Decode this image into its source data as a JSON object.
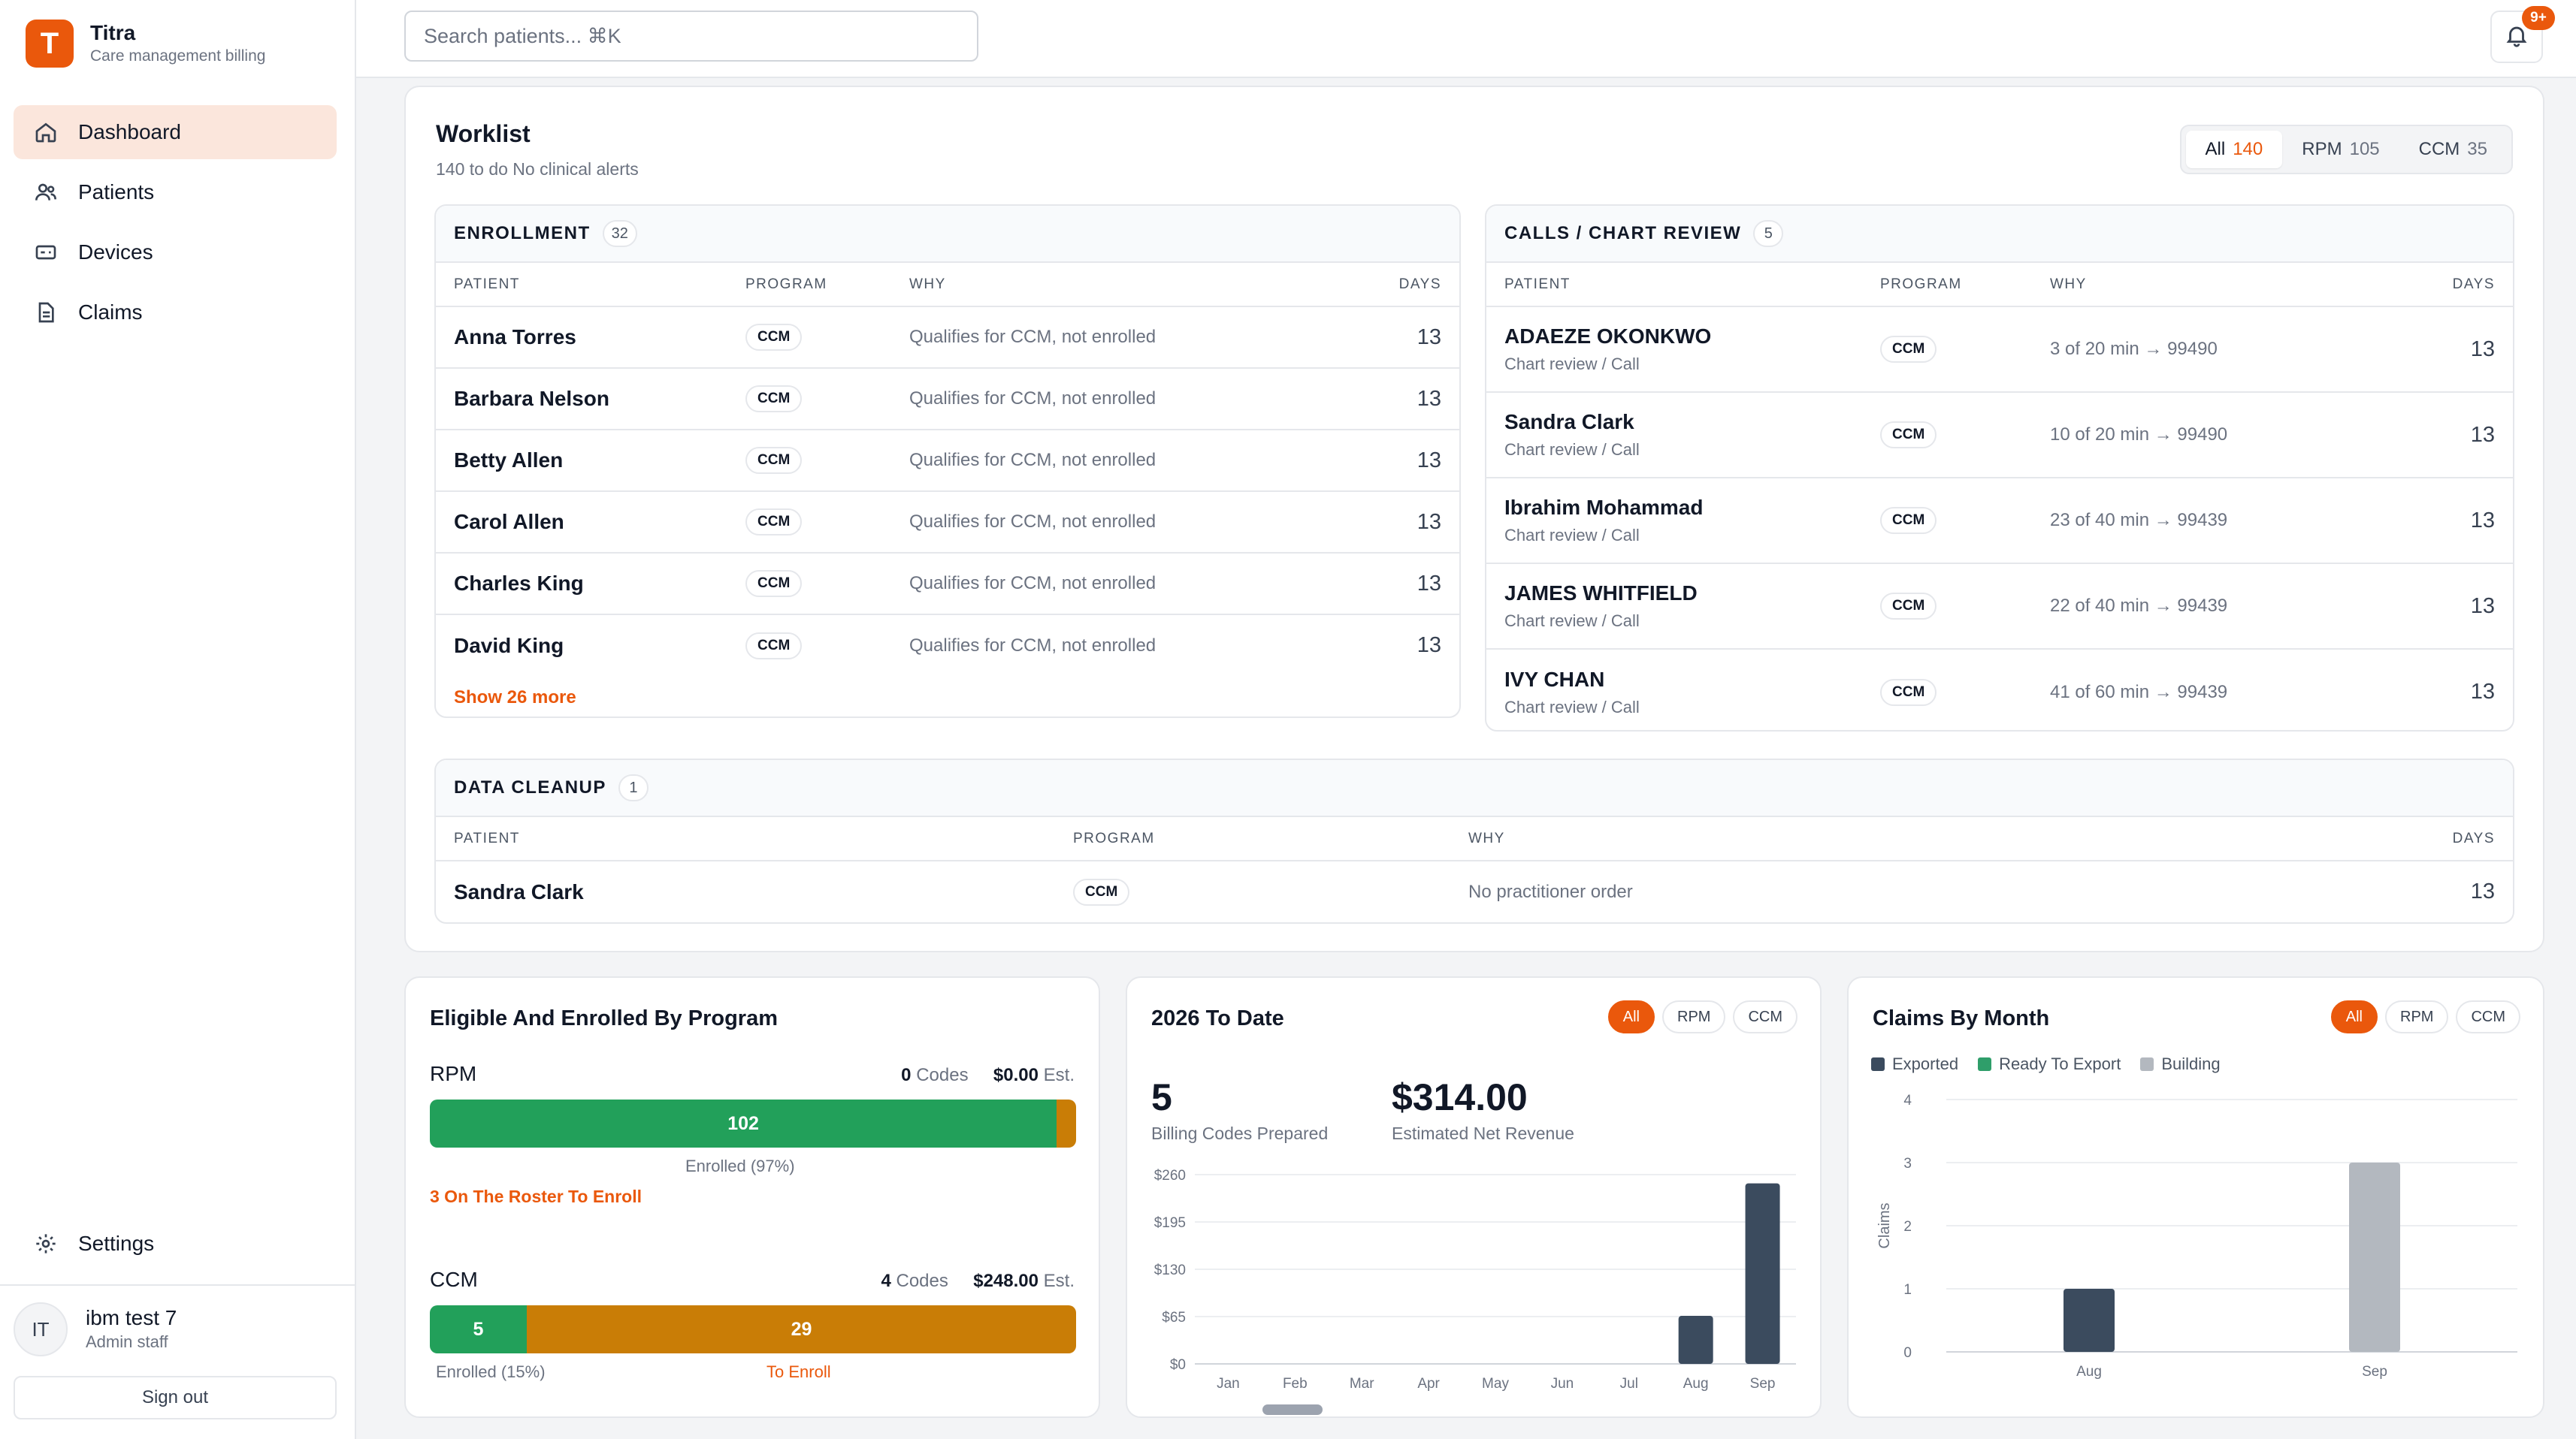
{
  "brand": {
    "logo_letter": "T",
    "name": "Titra",
    "subtitle": "Care management billing",
    "accent": "#ea580c"
  },
  "nav": [
    {
      "label": "Dashboard",
      "icon": "home-icon",
      "active": true
    },
    {
      "label": "Patients",
      "icon": "users-icon"
    },
    {
      "label": "Devices",
      "icon": "device-icon"
    },
    {
      "label": "Claims",
      "icon": "document-icon"
    }
  ],
  "settings": {
    "label": "Settings",
    "icon": "gear-icon"
  },
  "user": {
    "initials": "IT",
    "name": "ibm test 7",
    "role": "Admin staff",
    "signout": "Sign out"
  },
  "search": {
    "placeholder": "Search patients...  ⌘K"
  },
  "notifications": {
    "badge": "9+"
  },
  "worklist": {
    "title": "Worklist",
    "subtitle": "140 to do   No clinical alerts",
    "filters": [
      {
        "label": "All",
        "count": "140",
        "active": true
      },
      {
        "label": "RPM",
        "count": "105"
      },
      {
        "label": "CCM",
        "count": "35"
      }
    ],
    "enrollment": {
      "title": "ENROLLMENT",
      "count": "32",
      "columns": [
        "PATIENT",
        "PROGRAM",
        "WHY",
        "DAYS"
      ],
      "rows": [
        {
          "patient": "Anna Torres",
          "program": "CCM",
          "why": "Qualifies for CCM, not enrolled",
          "days": "13"
        },
        {
          "patient": "Barbara Nelson",
          "program": "CCM",
          "why": "Qualifies for CCM, not enrolled",
          "days": "13"
        },
        {
          "patient": "Betty Allen",
          "program": "CCM",
          "why": "Qualifies for CCM, not enrolled",
          "days": "13"
        },
        {
          "patient": "Carol Allen",
          "program": "CCM",
          "why": "Qualifies for CCM, not enrolled",
          "days": "13"
        },
        {
          "patient": "Charles King",
          "program": "CCM",
          "why": "Qualifies for CCM, not enrolled",
          "days": "13"
        },
        {
          "patient": "David King",
          "program": "CCM",
          "why": "Qualifies for CCM, not enrolled",
          "days": "13"
        }
      ],
      "show_more": "Show 26 more"
    },
    "calls": {
      "title": "CALLS / CHART REVIEW",
      "count": "5",
      "columns": [
        "PATIENT",
        "PROGRAM",
        "WHY",
        "DAYS"
      ],
      "rows": [
        {
          "patient": "ADAEZE OKONKWO",
          "sub": "Chart review / Call",
          "program": "CCM",
          "why": "3 of 20 min → 99490",
          "days": "13"
        },
        {
          "patient": "Sandra Clark",
          "sub": "Chart review / Call",
          "program": "CCM",
          "why": "10 of 20 min → 99490",
          "days": "13"
        },
        {
          "patient": "Ibrahim Mohammad",
          "sub": "Chart review / Call",
          "program": "CCM",
          "why": "23 of 40 min → 99439",
          "days": "13"
        },
        {
          "patient": "JAMES WHITFIELD",
          "sub": "Chart review / Call",
          "program": "CCM",
          "why": "22 of 40 min → 99439",
          "days": "13"
        },
        {
          "patient": "IVY CHAN",
          "sub": "Chart review / Call",
          "program": "CCM",
          "why": "41 of 60 min → 99439",
          "days": "13"
        }
      ]
    },
    "cleanup": {
      "title": "DATA CLEANUP",
      "count": "1",
      "columns": [
        "PATIENT",
        "PROGRAM",
        "WHY",
        "DAYS"
      ],
      "rows": [
        {
          "patient": "Sandra Clark",
          "program": "CCM",
          "why": "No practitioner order",
          "days": "13"
        }
      ]
    }
  },
  "eligible": {
    "title": "Eligible And Enrolled By Program",
    "rpm": {
      "label": "RPM",
      "codes_num": "0",
      "codes_label": "Codes",
      "est_num": "$0.00",
      "est_label": "Est.",
      "enrolled_value": "102",
      "enrolled_fraction": 0.97,
      "note": "Enrolled (97%)",
      "link": "3 On The Roster To Enroll"
    },
    "ccm": {
      "label": "CCM",
      "codes_num": "4",
      "codes_label": "Codes",
      "est_num": "$248.00",
      "est_label": "Est.",
      "enrolled_value": "5",
      "to_enroll_value": "29",
      "enrolled_fraction": 0.15,
      "note": "Enrolled (15%)",
      "to_enroll_label": "To Enroll"
    },
    "colors": {
      "enrolled": "#22a05a",
      "to_enroll": "#c97d06"
    }
  },
  "to_date": {
    "title": "2026 To Date",
    "filters": [
      {
        "label": "All",
        "active": true
      },
      {
        "label": "RPM"
      },
      {
        "label": "CCM"
      }
    ],
    "codes_value": "5",
    "codes_caption": "Billing Codes Prepared",
    "revenue_value": "$314.00",
    "revenue_caption": "Estimated Net Revenue"
  },
  "claims": {
    "title": "Claims By Month",
    "filters": [
      {
        "label": "All",
        "active": true
      },
      {
        "label": "RPM"
      },
      {
        "label": "CCM"
      }
    ]
  },
  "chart_data": [
    {
      "type": "bar",
      "title": "",
      "categories": [
        "Jan",
        "Feb",
        "Mar",
        "Apr",
        "May",
        "Jun",
        "Jul",
        "Aug",
        "Sep"
      ],
      "values": [
        0,
        0,
        0,
        0,
        0,
        0,
        0,
        66,
        248
      ],
      "y_ticks": [
        "$0",
        "$65",
        "$130",
        "$195",
        "$260"
      ],
      "ylim": [
        0,
        260
      ],
      "color": "#3b4b5e",
      "grid": true
    },
    {
      "type": "bar",
      "title": "",
      "categories": [
        "Aug",
        "Sep"
      ],
      "series": [
        {
          "name": "Exported",
          "values": [
            1,
            0
          ],
          "color": "#3b4b5e"
        },
        {
          "name": "Ready To Export",
          "values": [
            0,
            0
          ],
          "color": "#2f9e6a"
        },
        {
          "name": "Building",
          "values": [
            0,
            3
          ],
          "color": "#b3b8bf"
        }
      ],
      "ylabel": "Claims",
      "y_ticks": [
        "0",
        "1",
        "2",
        "3",
        "4"
      ],
      "ylim": [
        0,
        4
      ],
      "legend": "top-left",
      "grid": true
    }
  ]
}
